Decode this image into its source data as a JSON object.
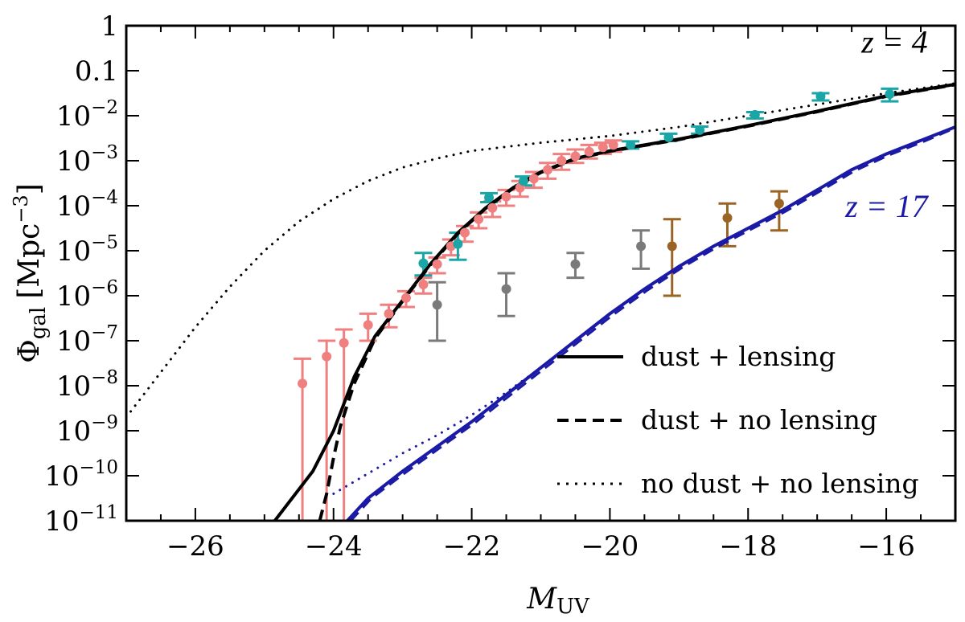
{
  "chart_data": {
    "type": "line",
    "xlabel": "M",
    "xlabel_sub": "UV",
    "ylabel": "Φ",
    "ylabel_sub": "gal",
    "ylabel_units": "[Mpc",
    "ylabel_units_exp": "−3",
    "ylabel_units_close": "]",
    "xlim": [
      -27,
      -15
    ],
    "ylim_log10": [
      -11,
      0
    ],
    "x_ticks": [
      {
        "value": -26,
        "label": "−26"
      },
      {
        "value": -24,
        "label": "−24"
      },
      {
        "value": -22,
        "label": "−22"
      },
      {
        "value": -20,
        "label": "−20"
      },
      {
        "value": -18,
        "label": "−18"
      },
      {
        "value": -16,
        "label": "−16"
      }
    ],
    "y_ticks": [
      {
        "log": 0,
        "base": "1",
        "exp": ""
      },
      {
        "log": -1,
        "base": "0.1",
        "exp": ""
      },
      {
        "log": -2,
        "base": "10",
        "exp": "−2"
      },
      {
        "log": -3,
        "base": "10",
        "exp": "−3"
      },
      {
        "log": -4,
        "base": "10",
        "exp": "−4"
      },
      {
        "log": -5,
        "base": "10",
        "exp": "−5"
      },
      {
        "log": -6,
        "base": "10",
        "exp": "−6"
      },
      {
        "log": -7,
        "base": "10",
        "exp": "−7"
      },
      {
        "log": -8,
        "base": "10",
        "exp": "−8"
      },
      {
        "log": -9,
        "base": "10",
        "exp": "−9"
      },
      {
        "log": -10,
        "base": "10",
        "exp": "−10"
      },
      {
        "log": -11,
        "base": "10",
        "exp": "−11"
      }
    ],
    "annotations": [
      {
        "text": "z = 4",
        "x": -15.4,
        "log_y": -0.6,
        "color": "#000000"
      },
      {
        "text": "z = 17",
        "x": -15.4,
        "log_y": -4.25,
        "color": "#1a1aa6"
      }
    ],
    "legend": {
      "position": "bottom-right",
      "entries": [
        {
          "label": "dust + lensing",
          "style": "solid"
        },
        {
          "label": "dust + no lensing",
          "style": "dashed"
        },
        {
          "label": "no dust + no lensing",
          "style": "dotted"
        }
      ]
    },
    "series": [
      {
        "name": "z=4 dust + lensing",
        "color": "#000000",
        "style": "solid",
        "width": 4,
        "points": [
          [
            -24.85,
            -11
          ],
          [
            -24.6,
            -10.5
          ],
          [
            -24.3,
            -9.9
          ],
          [
            -24.0,
            -9.0
          ],
          [
            -23.7,
            -7.8
          ],
          [
            -23.4,
            -6.9
          ],
          [
            -23.0,
            -6.1
          ],
          [
            -22.6,
            -5.3
          ],
          [
            -22.2,
            -4.6
          ],
          [
            -21.8,
            -4.05
          ],
          [
            -21.4,
            -3.6
          ],
          [
            -21.0,
            -3.25
          ],
          [
            -20.5,
            -2.95
          ],
          [
            -20.0,
            -2.78
          ],
          [
            -19.0,
            -2.52
          ],
          [
            -18.0,
            -2.22
          ],
          [
            -17.0,
            -1.9
          ],
          [
            -16.0,
            -1.56
          ],
          [
            -15.0,
            -1.3
          ]
        ]
      },
      {
        "name": "z=4 dust + no lensing",
        "color": "#000000",
        "style": "dashed",
        "width": 4,
        "points": [
          [
            -24.2,
            -11
          ],
          [
            -24.1,
            -10.4
          ],
          [
            -24.0,
            -9.6
          ],
          [
            -23.9,
            -8.9
          ],
          [
            -23.7,
            -7.95
          ],
          [
            -23.4,
            -6.95
          ],
          [
            -23.0,
            -6.12
          ],
          [
            -22.6,
            -5.32
          ],
          [
            -22.2,
            -4.62
          ],
          [
            -21.8,
            -4.06
          ],
          [
            -21.4,
            -3.61
          ],
          [
            -21.0,
            -3.26
          ],
          [
            -20.5,
            -2.96
          ],
          [
            -20.0,
            -2.79
          ],
          [
            -19.0,
            -2.53
          ],
          [
            -18.0,
            -2.23
          ],
          [
            -17.0,
            -1.91
          ],
          [
            -16.0,
            -1.57
          ],
          [
            -15.0,
            -1.31
          ]
        ]
      },
      {
        "name": "z=4 no dust + no lensing",
        "color": "#000000",
        "style": "dotted",
        "width": 3,
        "points": [
          [
            -27.0,
            -8.7
          ],
          [
            -26.5,
            -7.7
          ],
          [
            -26.0,
            -6.7
          ],
          [
            -25.5,
            -5.8
          ],
          [
            -25.0,
            -5.0
          ],
          [
            -24.5,
            -4.35
          ],
          [
            -24.0,
            -3.85
          ],
          [
            -23.5,
            -3.45
          ],
          [
            -23.0,
            -3.15
          ],
          [
            -22.5,
            -2.95
          ],
          [
            -22.0,
            -2.78
          ],
          [
            -21.0,
            -2.6
          ],
          [
            -20.0,
            -2.45
          ],
          [
            -19.0,
            -2.25
          ],
          [
            -18.0,
            -2.0
          ],
          [
            -17.0,
            -1.75
          ],
          [
            -16.0,
            -1.5
          ],
          [
            -15.0,
            -1.28
          ]
        ]
      },
      {
        "name": "z=17 dust + lensing",
        "color": "#1a1aa6",
        "style": "solid",
        "width": 4,
        "points": [
          [
            -23.8,
            -11
          ],
          [
            -23.5,
            -10.5
          ],
          [
            -23.0,
            -9.9
          ],
          [
            -22.5,
            -9.35
          ],
          [
            -22.0,
            -8.8
          ],
          [
            -21.5,
            -8.2
          ],
          [
            -21.0,
            -7.6
          ],
          [
            -20.5,
            -7.0
          ],
          [
            -20.0,
            -6.4
          ],
          [
            -19.5,
            -5.85
          ],
          [
            -19.0,
            -5.35
          ],
          [
            -18.5,
            -4.9
          ],
          [
            -18.0,
            -4.5
          ],
          [
            -17.5,
            -4.1
          ],
          [
            -17.0,
            -3.65
          ],
          [
            -16.5,
            -3.2
          ],
          [
            -16.0,
            -2.85
          ],
          [
            -15.5,
            -2.55
          ],
          [
            -15.0,
            -2.25
          ]
        ]
      },
      {
        "name": "z=17 dust + no lensing",
        "color": "#1a1aa6",
        "style": "dashed",
        "width": 3,
        "points": [
          [
            -23.75,
            -11
          ],
          [
            -23.45,
            -10.5
          ],
          [
            -22.95,
            -9.92
          ],
          [
            -22.45,
            -9.37
          ],
          [
            -21.95,
            -8.82
          ],
          [
            -21.45,
            -8.22
          ],
          [
            -20.95,
            -7.62
          ],
          [
            -20.45,
            -7.02
          ],
          [
            -19.95,
            -6.42
          ],
          [
            -19.45,
            -5.87
          ],
          [
            -18.95,
            -5.37
          ],
          [
            -18.45,
            -4.92
          ],
          [
            -17.95,
            -4.52
          ],
          [
            -17.45,
            -4.12
          ],
          [
            -16.95,
            -3.67
          ],
          [
            -16.45,
            -3.22
          ],
          [
            -15.95,
            -2.87
          ],
          [
            -15.45,
            -2.57
          ],
          [
            -15.0,
            -2.27
          ]
        ]
      },
      {
        "name": "z=17 no dust + no lensing",
        "color": "#1a1aa6",
        "style": "dotted",
        "width": 3,
        "points": [
          [
            -24.0,
            -10.4
          ],
          [
            -23.5,
            -9.95
          ],
          [
            -23.0,
            -9.5
          ],
          [
            -22.5,
            -9.1
          ],
          [
            -22.0,
            -8.65
          ],
          [
            -21.5,
            -8.15
          ],
          [
            -21.0,
            -7.6
          ],
          [
            -20.5,
            -7.0
          ]
        ]
      }
    ],
    "data_points": [
      {
        "group": "red",
        "color": "#f08080",
        "x": -24.45,
        "log_y": -7.95,
        "upper": -7.4,
        "lower": -11
      },
      {
        "group": "red",
        "color": "#f08080",
        "x": -24.1,
        "log_y": -7.35,
        "upper": -7.0,
        "lower": -11
      },
      {
        "group": "red",
        "color": "#f08080",
        "x": -23.85,
        "log_y": -7.05,
        "upper": -6.75,
        "lower": -11
      },
      {
        "group": "red",
        "color": "#f08080",
        "x": -23.5,
        "log_y": -6.65,
        "upper": -6.4,
        "lower": -7.0
      },
      {
        "group": "red",
        "color": "#f08080",
        "x": -23.2,
        "log_y": -6.4,
        "upper": -6.2,
        "lower": -6.7
      },
      {
        "group": "red",
        "color": "#f08080",
        "x": -22.95,
        "log_y": -6.05,
        "upper": -5.9,
        "lower": -6.25
      },
      {
        "group": "red",
        "color": "#f08080",
        "x": -22.7,
        "log_y": -5.75,
        "upper": -5.6,
        "lower": -5.95
      },
      {
        "group": "red",
        "color": "#f08080",
        "x": -22.5,
        "log_y": -5.3,
        "upper": -5.15,
        "lower": -5.5
      },
      {
        "group": "red",
        "color": "#f08080",
        "x": -22.3,
        "log_y": -4.9,
        "upper": -4.75,
        "lower": -5.1
      },
      {
        "group": "red",
        "color": "#f08080",
        "x": -22.1,
        "log_y": -4.6,
        "upper": -4.45,
        "lower": -4.8
      },
      {
        "group": "red",
        "color": "#f08080",
        "x": -21.9,
        "log_y": -4.3,
        "upper": -4.15,
        "lower": -4.5
      },
      {
        "group": "red",
        "color": "#f08080",
        "x": -21.7,
        "log_y": -4.05,
        "upper": -3.9,
        "lower": -4.25
      },
      {
        "group": "red",
        "color": "#f08080",
        "x": -21.5,
        "log_y": -3.8,
        "upper": -3.65,
        "lower": -4.0
      },
      {
        "group": "red",
        "color": "#f08080",
        "x": -21.3,
        "log_y": -3.6,
        "upper": -3.45,
        "lower": -3.8
      },
      {
        "group": "red",
        "color": "#f08080",
        "x": -21.1,
        "log_y": -3.4,
        "upper": -3.25,
        "lower": -3.6
      },
      {
        "group": "red",
        "color": "#f08080",
        "x": -20.9,
        "log_y": -3.2,
        "upper": -3.05,
        "lower": -3.4
      },
      {
        "group": "red",
        "color": "#f08080",
        "x": -20.7,
        "log_y": -3.0,
        "upper": -2.85,
        "lower": -3.2
      },
      {
        "group": "red",
        "color": "#f08080",
        "x": -20.5,
        "log_y": -2.9,
        "upper": -2.75,
        "lower": -3.05
      },
      {
        "group": "red",
        "color": "#f08080",
        "x": -20.3,
        "log_y": -2.8,
        "upper": -2.65,
        "lower": -2.95
      },
      {
        "group": "red",
        "color": "#f08080",
        "x": -20.1,
        "log_y": -2.7,
        "upper": -2.6,
        "lower": -2.85
      },
      {
        "group": "red",
        "color": "#f08080",
        "x": -19.95,
        "log_y": -2.65,
        "upper": -2.55,
        "lower": -2.8
      },
      {
        "group": "cyan",
        "color": "#1aa6a6",
        "x": -22.7,
        "log_y": -5.28,
        "upper": -5.05,
        "lower": -5.55
      },
      {
        "group": "cyan",
        "color": "#1aa6a6",
        "x": -22.2,
        "log_y": -4.85,
        "upper": -4.6,
        "lower": -5.2
      },
      {
        "group": "cyan",
        "color": "#1aa6a6",
        "x": -21.75,
        "log_y": -3.82,
        "upper": -3.72,
        "lower": -3.92
      },
      {
        "group": "cyan",
        "color": "#1aa6a6",
        "x": -21.25,
        "log_y": -3.45,
        "upper": -3.35,
        "lower": -3.55
      },
      {
        "group": "cyan",
        "color": "#1aa6a6",
        "x": -19.7,
        "log_y": -2.65,
        "upper": -2.57,
        "lower": -2.73
      },
      {
        "group": "cyan",
        "color": "#1aa6a6",
        "x": -19.15,
        "log_y": -2.48,
        "upper": -2.4,
        "lower": -2.56
      },
      {
        "group": "cyan",
        "color": "#1aa6a6",
        "x": -18.7,
        "log_y": -2.32,
        "upper": -2.24,
        "lower": -2.4
      },
      {
        "group": "cyan",
        "color": "#1aa6a6",
        "x": -17.9,
        "log_y": -1.98,
        "upper": -1.92,
        "lower": -2.06
      },
      {
        "group": "cyan",
        "color": "#1aa6a6",
        "x": -16.95,
        "log_y": -1.57,
        "upper": -1.5,
        "lower": -1.66
      },
      {
        "group": "cyan",
        "color": "#1aa6a6",
        "x": -15.95,
        "log_y": -1.52,
        "upper": -1.4,
        "lower": -1.68
      },
      {
        "group": "gray",
        "color": "#7a7a7a",
        "x": -22.5,
        "log_y": -6.2,
        "upper": -5.7,
        "lower": -7.0
      },
      {
        "group": "gray",
        "color": "#7a7a7a",
        "x": -21.5,
        "log_y": -5.85,
        "upper": -5.5,
        "lower": -6.45
      },
      {
        "group": "gray",
        "color": "#7a7a7a",
        "x": -20.5,
        "log_y": -5.3,
        "upper": -5.05,
        "lower": -5.6
      },
      {
        "group": "gray",
        "color": "#7a7a7a",
        "x": -19.55,
        "log_y": -4.9,
        "upper": -4.55,
        "lower": -5.4
      },
      {
        "group": "brown",
        "color": "#9a6424",
        "x": -19.1,
        "log_y": -4.9,
        "upper": -4.3,
        "lower": -6.0
      },
      {
        "group": "brown",
        "color": "#9a6424",
        "x": -18.3,
        "log_y": -4.27,
        "upper": -3.95,
        "lower": -4.9
      },
      {
        "group": "brown",
        "color": "#9a6424",
        "x": -17.55,
        "log_y": -3.95,
        "upper": -3.68,
        "lower": -4.55
      }
    ]
  }
}
